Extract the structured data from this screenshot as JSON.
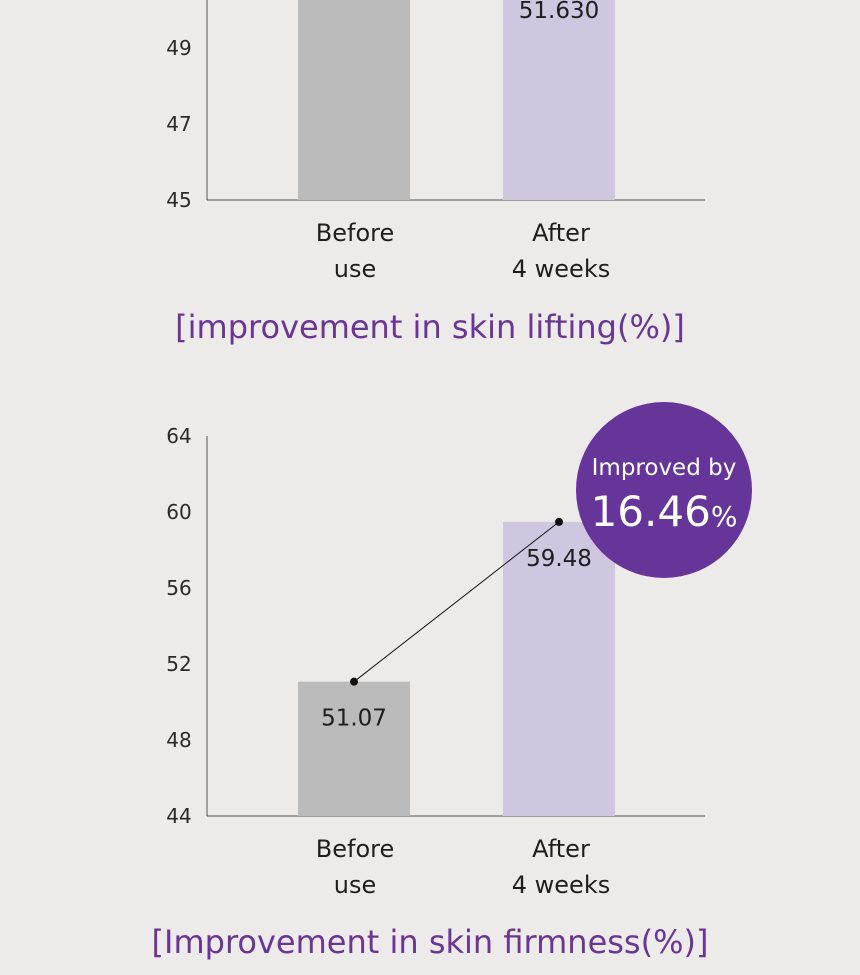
{
  "colors": {
    "before_bar": "#bbbbbb",
    "after_bar": "#cfc6df",
    "title": "#6a3593",
    "badge": "#66359a"
  },
  "chart_data": [
    {
      "type": "bar",
      "title": "[improvement in skin lifting(%)]",
      "categories": [
        [
          "Before",
          "use"
        ],
        [
          "After",
          "4 weeks"
        ]
      ],
      "values": [
        null,
        51.63
      ],
      "value_labels": [
        "",
        "51.630"
      ],
      "yticks": [
        45,
        47,
        49
      ],
      "ylim": [
        45,
        52.5
      ]
    },
    {
      "type": "bar",
      "title": "[Improvement in skin firmness(%)]",
      "categories": [
        [
          "Before",
          "use"
        ],
        [
          "After",
          "4 weeks"
        ]
      ],
      "values": [
        51.07,
        59.48
      ],
      "value_labels": [
        "51.07",
        "59.48"
      ],
      "yticks": [
        44,
        48,
        52,
        56,
        60,
        64
      ],
      "ylim": [
        44,
        64
      ],
      "badge": {
        "top": "Improved by",
        "value": "16.46",
        "unit": "%"
      }
    }
  ]
}
